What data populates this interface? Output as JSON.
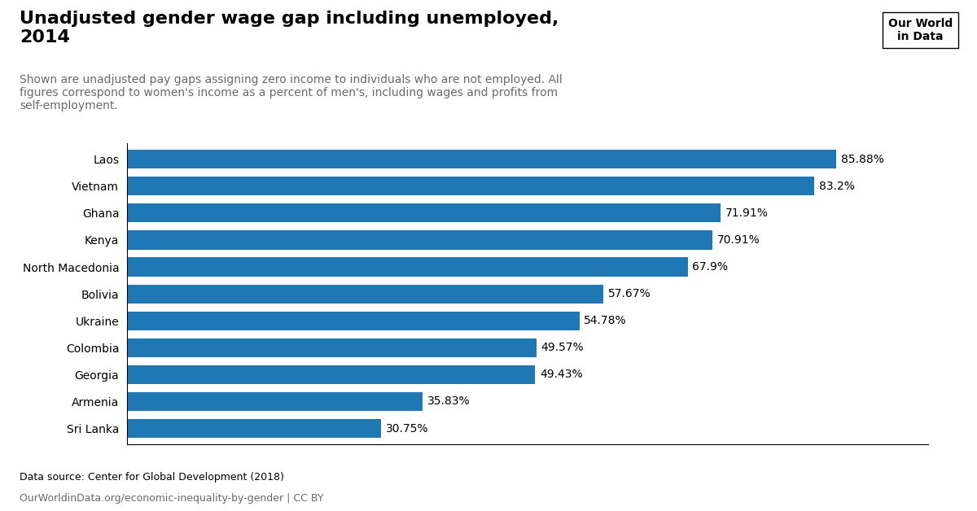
{
  "chart_data": {
    "type": "bar",
    "orientation": "horizontal",
    "title": "Unadjusted gender wage gap including unemployed,\n2014",
    "subtitle": "Shown are unadjusted pay gaps assigning zero income to individuals who are not employed. All\nfigures correspond to women's income as a percent of men's, including wages and profits from\nself-employment.",
    "categories": [
      "Sri Lanka",
      "Armenia",
      "Georgia",
      "Colombia",
      "Ukraine",
      "Bolivia",
      "North Macedonia",
      "Kenya",
      "Ghana",
      "Vietnam",
      "Laos"
    ],
    "values": [
      30.75,
      35.83,
      49.43,
      49.57,
      54.78,
      57.67,
      67.9,
      70.91,
      71.91,
      83.2,
      85.88
    ],
    "value_labels": [
      "30.75%",
      "35.83%",
      "49.43%",
      "49.57%",
      "54.78%",
      "57.67%",
      "67.9%",
      "70.91%",
      "71.91%",
      "83.2%",
      "85.88%"
    ],
    "data_labels": true,
    "xlim": [
      0,
      97
    ],
    "tick_labels": "y",
    "grid": false,
    "annotations": [
      "Data source: Center for Global Development (2018)",
      "OurWorldinData.org/economic-inequality-by-gender | CC BY",
      "Our World\nin Data"
    ]
  }
}
